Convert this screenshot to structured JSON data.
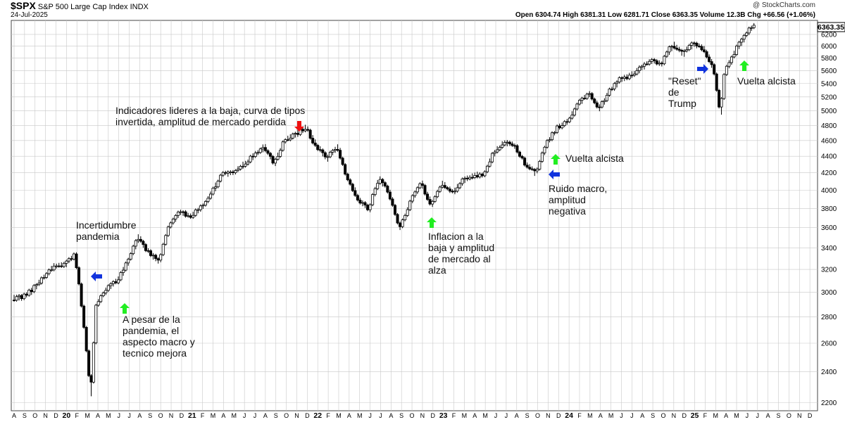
{
  "header": {
    "symbol": "$SPX",
    "name": "S&P 500 Large Cap Index",
    "exchange": "INDX",
    "date": "24-Jul-2025",
    "watermark": "@ StockCharts.com",
    "ohlc_text": "Open 6304.74  High 6381.31  Low 6281.71  Close 6363.35  Volume 12.3B  Chg +66.56 (+1.06%)"
  },
  "colors": {
    "up_arrow": "#22ee22",
    "down_arrow": "#ee1111",
    "side_arrow": "#1133dd",
    "candle": "#000000",
    "grid": "#c8c8c8"
  },
  "chart_data": {
    "type": "candlestick",
    "y_scale": "log",
    "ylim": [
      2150,
      6450
    ],
    "y_ticks": [
      2200,
      2400,
      2600,
      2800,
      3000,
      3200,
      3400,
      3600,
      3800,
      4000,
      4200,
      4400,
      4600,
      4800,
      5000,
      5200,
      5400,
      5600,
      5800,
      6000,
      6200
    ],
    "last_value": "6363.35",
    "x_tick_labels": [
      "A",
      "S",
      "O",
      "N",
      "D",
      "20",
      "F",
      "M",
      "A",
      "M",
      "J",
      "J",
      "A",
      "S",
      "O",
      "N",
      "D",
      "21",
      "F",
      "M",
      "A",
      "M",
      "J",
      "J",
      "A",
      "S",
      "O",
      "N",
      "D",
      "22",
      "F",
      "M",
      "A",
      "M",
      "J",
      "J",
      "A",
      "S",
      "O",
      "N",
      "D",
      "23",
      "F",
      "M",
      "A",
      "M",
      "J",
      "J",
      "A",
      "S",
      "O",
      "N",
      "D",
      "24",
      "F",
      "M",
      "A",
      "M",
      "J",
      "J",
      "A",
      "S",
      "O",
      "N",
      "D",
      "25",
      "F",
      "M",
      "A",
      "M",
      "J",
      "J",
      "A",
      "S",
      "O",
      "N",
      "D"
    ],
    "series": [
      {
        "month": 0,
        "close": 2950
      },
      {
        "month": 1,
        "close": 2960
      },
      {
        "month": 2,
        "close": 3030
      },
      {
        "month": 3,
        "close": 3140
      },
      {
        "month": 4,
        "close": 3230
      },
      {
        "month": 5,
        "close": 3250
      },
      {
        "month": 6,
        "close": 3340
      },
      {
        "month": 7,
        "close": 2600
      },
      {
        "month": 7.5,
        "close": 2260
      },
      {
        "month": 8,
        "close": 2900
      },
      {
        "month": 9,
        "close": 3030
      },
      {
        "month": 10,
        "close": 3100
      },
      {
        "month": 11,
        "close": 3270
      },
      {
        "month": 12,
        "close": 3500
      },
      {
        "month": 13,
        "close": 3360
      },
      {
        "month": 14,
        "close": 3270
      },
      {
        "month": 15,
        "close": 3630
      },
      {
        "month": 16,
        "close": 3760
      },
      {
        "month": 17,
        "close": 3720
      },
      {
        "month": 18,
        "close": 3810
      },
      {
        "month": 19,
        "close": 3970
      },
      {
        "month": 20,
        "close": 4180
      },
      {
        "month": 21,
        "close": 4200
      },
      {
        "month": 22,
        "close": 4300
      },
      {
        "month": 23,
        "close": 4400
      },
      {
        "month": 24,
        "close": 4520
      },
      {
        "month": 25,
        "close": 4310
      },
      {
        "month": 26,
        "close": 4600
      },
      {
        "month": 27,
        "close": 4680
      },
      {
        "month": 28,
        "close": 4770
      },
      {
        "month": 29,
        "close": 4520
      },
      {
        "month": 30,
        "close": 4370
      },
      {
        "month": 31,
        "close": 4530
      },
      {
        "month": 32,
        "close": 4130
      },
      {
        "month": 33,
        "close": 3900
      },
      {
        "month": 34,
        "close": 3790
      },
      {
        "month": 35,
        "close": 4130
      },
      {
        "month": 36,
        "close": 3960
      },
      {
        "month": 37,
        "close": 3590
      },
      {
        "month": 38,
        "close": 3870
      },
      {
        "month": 39,
        "close": 4080
      },
      {
        "month": 40,
        "close": 3840
      },
      {
        "month": 41,
        "close": 4080
      },
      {
        "month": 42,
        "close": 3970
      },
      {
        "month": 43,
        "close": 4110
      },
      {
        "month": 44,
        "close": 4170
      },
      {
        "month": 45,
        "close": 4180
      },
      {
        "month": 46,
        "close": 4450
      },
      {
        "month": 47,
        "close": 4590
      },
      {
        "month": 48,
        "close": 4510
      },
      {
        "month": 49,
        "close": 4290
      },
      {
        "month": 50,
        "close": 4190
      },
      {
        "month": 51,
        "close": 4560
      },
      {
        "month": 52,
        "close": 4770
      },
      {
        "month": 53,
        "close": 4850
      },
      {
        "month": 54,
        "close": 5100
      },
      {
        "month": 55,
        "close": 5250
      },
      {
        "month": 56,
        "close": 5030
      },
      {
        "month": 57,
        "close": 5280
      },
      {
        "month": 58,
        "close": 5460
      },
      {
        "month": 59,
        "close": 5520
      },
      {
        "month": 60,
        "close": 5650
      },
      {
        "month": 61,
        "close": 5760
      },
      {
        "month": 62,
        "close": 5710
      },
      {
        "month": 63,
        "close": 6030
      },
      {
        "month": 64,
        "close": 5880
      },
      {
        "month": 65,
        "close": 6040
      },
      {
        "month": 66,
        "close": 5950
      },
      {
        "month": 67,
        "close": 5610
      },
      {
        "month": 67.6,
        "close": 4980
      },
      {
        "month": 68,
        "close": 5570
      },
      {
        "month": 69,
        "close": 5910
      },
      {
        "month": 70,
        "close": 6200
      },
      {
        "month": 70.8,
        "close": 6363
      }
    ]
  },
  "annotations": {
    "indicators": [
      "Indicadores lideres a la baja, curva de tipos",
      "invertida, amplitud de mercado perdida"
    ],
    "pandemia": [
      "Incertidumbre",
      "pandemia"
    ],
    "a_pesar": [
      "A pesar de la",
      "pandemia, el",
      "aspecto macro y",
      "tecnico mejora"
    ],
    "inflacion": [
      "Inflacion a la",
      "baja y amplitud",
      "de mercado al",
      "alza"
    ],
    "vuelta1": "Vuelta alcista",
    "ruido": [
      "Ruido macro,",
      "amplitud",
      "negativa"
    ],
    "reset": [
      "\"Reset\"",
      "de",
      "Trump"
    ],
    "vuelta2": "Vuelta alcista"
  }
}
